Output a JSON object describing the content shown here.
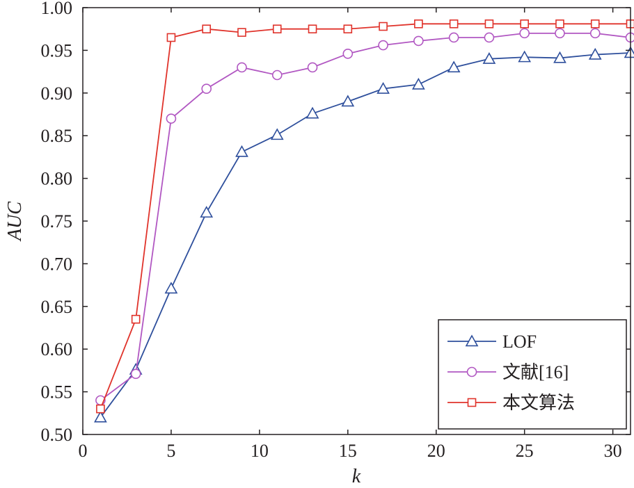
{
  "chart_data": {
    "type": "line",
    "xlabel": "k",
    "ylabel": "AUC",
    "xlim": [
      0,
      31
    ],
    "ylim": [
      0.5,
      1.0
    ],
    "xticks": [
      0,
      5,
      10,
      15,
      20,
      25,
      30
    ],
    "xtick_labels": [
      "0",
      "5",
      "10",
      "15",
      "20",
      "25",
      "30"
    ],
    "yticks": [
      0.5,
      0.55,
      0.6,
      0.65,
      0.7,
      0.75,
      0.8,
      0.85,
      0.9,
      0.95,
      1.0
    ],
    "ytick_labels": [
      "0.50",
      "0.55",
      "0.60",
      "0.65",
      "0.70",
      "0.75",
      "0.80",
      "0.85",
      "0.90",
      "0.95",
      "1.00"
    ],
    "grid": false,
    "legend_position": "bottom-right",
    "x": [
      1,
      3,
      5,
      7,
      9,
      11,
      13,
      15,
      17,
      19,
      21,
      23,
      25,
      27,
      29,
      31
    ],
    "series": [
      {
        "name": "LOF",
        "marker": "triangle",
        "color": "#2e4f9c",
        "values": [
          0.52,
          0.576,
          0.671,
          0.76,
          0.831,
          0.851,
          0.876,
          0.89,
          0.905,
          0.91,
          0.93,
          0.94,
          0.942,
          0.941,
          0.945,
          0.947
        ]
      },
      {
        "name": "文献[16]",
        "marker": "circle",
        "color": "#b157c2",
        "values": [
          0.54,
          0.571,
          0.87,
          0.905,
          0.93,
          0.921,
          0.93,
          0.946,
          0.956,
          0.961,
          0.965,
          0.965,
          0.97,
          0.97,
          0.97,
          0.965
        ]
      },
      {
        "name": "本文算法",
        "marker": "square",
        "color": "#e0332b",
        "values": [
          0.53,
          0.635,
          0.965,
          0.975,
          0.971,
          0.975,
          0.975,
          0.975,
          0.978,
          0.981,
          0.981,
          0.981,
          0.981,
          0.981,
          0.981,
          0.981
        ]
      }
    ]
  }
}
